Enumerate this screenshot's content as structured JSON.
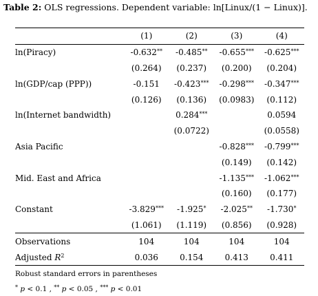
{
  "title": {
    "label": "Table 2:",
    "text": "OLS regressions. Dependent variable: ln[Linux/(1 − Linux)]."
  },
  "columns": [
    "(1)",
    "(2)",
    "(3)",
    "(4)"
  ],
  "rows": [
    {
      "label": "ln(Piracy)",
      "coef": [
        "-0.632",
        "-0.485",
        "-0.655",
        "-0.625"
      ],
      "stars": [
        "**",
        "**",
        "***",
        "***"
      ],
      "se": [
        "(0.264)",
        "(0.237)",
        "(0.200)",
        "(0.204)"
      ]
    },
    {
      "label": "ln(GDP/cap (PPP))",
      "coef": [
        "-0.151",
        "-0.423",
        "-0.298",
        "-0.347"
      ],
      "stars": [
        "",
        "***",
        "***",
        "***"
      ],
      "se": [
        "(0.126)",
        "(0.136)",
        "(0.0983)",
        "(0.112)"
      ]
    },
    {
      "label": "ln(Internet bandwidth)",
      "coef": [
        "",
        "0.284",
        "",
        "0.0594"
      ],
      "stars": [
        "",
        "***",
        "",
        ""
      ],
      "se": [
        "",
        "(0.0722)",
        "",
        "(0.0558)"
      ]
    },
    {
      "label": "Asia Pacific",
      "coef": [
        "",
        "",
        "-0.828",
        "-0.799"
      ],
      "stars": [
        "",
        "",
        "***",
        "***"
      ],
      "se": [
        "",
        "",
        "(0.149)",
        "(0.142)"
      ]
    },
    {
      "label": "Mid. East and Africa",
      "coef": [
        "",
        "",
        "-1.135",
        "-1.062"
      ],
      "stars": [
        "",
        "",
        "***",
        "***"
      ],
      "se": [
        "",
        "",
        "(0.160)",
        "(0.177)"
      ]
    },
    {
      "label": "Constant",
      "coef": [
        "-3.829",
        "-1.925",
        "-2.025",
        "-1.730"
      ],
      "stars": [
        "***",
        "*",
        "**",
        "*"
      ],
      "se": [
        "(1.061)",
        "(1.119)",
        "(0.856)",
        "(0.928)"
      ]
    }
  ],
  "stats": {
    "observations": {
      "label": "Observations",
      "values": [
        "104",
        "104",
        "104",
        "104"
      ]
    },
    "adj_r2": {
      "label_prefix": "Adjusted ",
      "label_var": "R",
      "label_sup": "2",
      "values": [
        "0.036",
        "0.154",
        "0.413",
        "0.411"
      ]
    }
  },
  "notes": {
    "line1": "Robust standard errors in parentheses",
    "sig": [
      {
        "stars": "*",
        "var": "p",
        "rest": " < 0.1 , "
      },
      {
        "stars": "**",
        "var": "p",
        "rest": " < 0.05 , "
      },
      {
        "stars": "***",
        "var": "p",
        "rest": " < 0.01"
      }
    ]
  }
}
